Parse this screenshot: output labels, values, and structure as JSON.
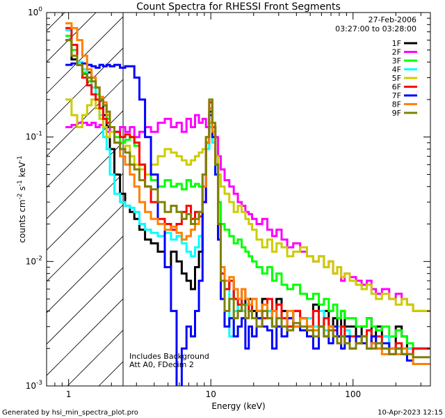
{
  "chart_data": {
    "type": "line",
    "title": "Count Spectra for RHESSI Front Segments",
    "xlabel": "Energy (keV)",
    "ylabel_base": "counts cm",
    "ylabel_exp1": "-2",
    "ylabel_mid": " s",
    "ylabel_exp2": "-1",
    "ylabel_tail": " keV",
    "ylabel_exp3": "-1",
    "x_scale": "log",
    "y_scale": "log",
    "xlim": [
      0.7,
      350
    ],
    "ylim": [
      0.001,
      1.0
    ],
    "x_ticks": [
      {
        "value": 1,
        "label": "1"
      },
      {
        "value": 10,
        "label": "10"
      },
      {
        "value": 100,
        "label": "100"
      }
    ],
    "y_ticks": [
      {
        "value": 1.0,
        "base": "10",
        "exp": "0"
      },
      {
        "value": 0.1,
        "base": "10",
        "exp": "-1"
      },
      {
        "value": 0.01,
        "base": "10",
        "exp": "-2"
      },
      {
        "value": 0.001,
        "base": "10",
        "exp": "-3"
      }
    ],
    "date": "27-Feb-2006",
    "time_range": "03:27:00 to 03:28:00",
    "annotation_line1": "Includes Background",
    "annotation_line2": "Att A0, FDecim 2",
    "hatched_below_keV": 3,
    "footer_left": "Generated by hsi_min_spectra_plot.pro",
    "footer_right": "10-Apr-2023 12:15",
    "energy": [
      1.0,
      1.1,
      1.2,
      1.3,
      1.4,
      1.5,
      1.6,
      1.7,
      1.8,
      1.9,
      2.0,
      2.2,
      2.4,
      2.6,
      2.8,
      3.0,
      3.3,
      3.6,
      4.0,
      4.5,
      5.0,
      5.5,
      6.0,
      6.5,
      7.0,
      7.5,
      8.0,
      8.5,
      9.0,
      9.5,
      10.0,
      10.5,
      11.0,
      11.5,
      12.0,
      13,
      14,
      15,
      16,
      17,
      18,
      19,
      20,
      22,
      24,
      26,
      28,
      30,
      33,
      36,
      40,
      45,
      50,
      55,
      60,
      65,
      70,
      75,
      80,
      85,
      90,
      100,
      110,
      120,
      130,
      140,
      150,
      170,
      190,
      210,
      230,
      250,
      280,
      300,
      330
    ],
    "series": [
      {
        "name": "1F",
        "color": "#000000",
        "values": [
          0.6,
          0.42,
          0.38,
          0.35,
          0.33,
          0.3,
          0.25,
          0.2,
          0.15,
          0.12,
          0.08,
          0.05,
          0.035,
          0.028,
          0.025,
          0.022,
          0.018,
          0.015,
          0.014,
          0.012,
          0.009,
          0.012,
          0.01,
          0.008,
          0.007,
          0.006,
          0.009,
          0.012,
          0.04,
          0.09,
          0.16,
          0.12,
          0.06,
          0.02,
          0.008,
          0.006,
          0.007,
          0.005,
          0.004,
          0.006,
          0.0045,
          0.005,
          0.004,
          0.0035,
          0.005,
          0.004,
          0.003,
          0.005,
          0.004,
          0.0035,
          0.004,
          0.0035,
          0.003,
          0.0045,
          0.003,
          0.004,
          0.003,
          0.0035,
          0.0025,
          0.004,
          0.003,
          0.003,
          0.0025,
          0.003,
          0.0035,
          0.0025,
          0.003,
          0.0025,
          0.002,
          0.003,
          0.0025,
          0.002,
          0.002,
          0.002,
          0.002
        ]
      },
      {
        "name": "2F",
        "color": "#ff00ff",
        "values": [
          0.12,
          0.125,
          0.13,
          0.13,
          0.125,
          0.13,
          0.12,
          0.125,
          0.12,
          0.11,
          0.12,
          0.11,
          0.12,
          0.11,
          0.12,
          0.1,
          0.11,
          0.12,
          0.11,
          0.13,
          0.14,
          0.12,
          0.13,
          0.11,
          0.14,
          0.12,
          0.15,
          0.13,
          0.14,
          0.12,
          0.13,
          0.12,
          0.1,
          0.07,
          0.055,
          0.045,
          0.04,
          0.035,
          0.03,
          0.028,
          0.025,
          0.024,
          0.022,
          0.02,
          0.022,
          0.018,
          0.016,
          0.018,
          0.015,
          0.013,
          0.014,
          0.012,
          0.011,
          0.01,
          0.011,
          0.009,
          0.01,
          0.008,
          0.009,
          0.007,
          0.008,
          0.0075,
          0.007,
          0.0065,
          0.007,
          0.006,
          0.0055,
          0.006,
          0.005,
          0.0055,
          0.005,
          0.0045,
          0.004,
          0.004,
          0.004
        ]
      },
      {
        "name": "3F",
        "color": "#00ff00",
        "values": [
          0.65,
          0.5,
          0.4,
          0.33,
          0.28,
          0.25,
          0.22,
          0.2,
          0.18,
          0.14,
          0.12,
          0.1,
          0.09,
          0.095,
          0.1,
          0.085,
          0.06,
          0.05,
          0.045,
          0.04,
          0.045,
          0.04,
          0.042,
          0.038,
          0.045,
          0.04,
          0.042,
          0.04,
          0.05,
          0.08,
          0.15,
          0.12,
          0.07,
          0.03,
          0.02,
          0.018,
          0.016,
          0.014,
          0.015,
          0.013,
          0.012,
          0.011,
          0.01,
          0.009,
          0.008,
          0.009,
          0.007,
          0.008,
          0.0065,
          0.006,
          0.0065,
          0.0055,
          0.005,
          0.0055,
          0.0045,
          0.005,
          0.004,
          0.0045,
          0.0035,
          0.004,
          0.0035,
          0.0035,
          0.003,
          0.003,
          0.0035,
          0.003,
          0.0028,
          0.003,
          0.0025,
          0.0028,
          0.0025,
          0.0022,
          0.002,
          0.002,
          0.002
        ]
      },
      {
        "name": "4F",
        "color": "#00ffff",
        "values": [
          0.72,
          0.45,
          0.4,
          0.35,
          0.3,
          0.25,
          0.2,
          0.15,
          0.1,
          0.08,
          0.05,
          0.035,
          0.03,
          0.028,
          0.027,
          0.025,
          0.02,
          0.018,
          0.017,
          0.016,
          0.017,
          0.015,
          0.016,
          0.014,
          0.012,
          0.011,
          0.013,
          0.016,
          0.04,
          0.08,
          0.12,
          0.09,
          0.05,
          0.02,
          0.008,
          0.006,
          0.0025,
          0.004,
          0.005,
          0.004,
          0.0045,
          0.004,
          0.005,
          0.004,
          0.0035,
          0.004,
          0.003,
          0.0045,
          0.0035,
          0.003,
          0.004,
          0.003,
          0.0035,
          0.003,
          0.004,
          0.0028,
          0.003,
          0.0025,
          0.003,
          0.0025,
          0.0028,
          0.0025,
          0.0022,
          0.0025,
          0.0028,
          0.002,
          0.0022,
          0.0025,
          0.002,
          0.002,
          0.0018,
          0.002,
          0.002,
          0.002,
          0.002
        ]
      },
      {
        "name": "5F",
        "color": "#cccc00",
        "values": [
          0.2,
          0.15,
          0.12,
          0.15,
          0.18,
          0.2,
          0.17,
          0.14,
          0.12,
          0.1,
          0.11,
          0.09,
          0.08,
          0.085,
          0.07,
          0.06,
          0.055,
          0.05,
          0.06,
          0.07,
          0.08,
          0.075,
          0.07,
          0.065,
          0.06,
          0.065,
          0.07,
          0.075,
          0.08,
          0.1,
          0.13,
          0.1,
          0.07,
          0.05,
          0.04,
          0.035,
          0.03,
          0.025,
          0.028,
          0.025,
          0.022,
          0.02,
          0.018,
          0.015,
          0.013,
          0.015,
          0.012,
          0.014,
          0.013,
          0.011,
          0.012,
          0.013,
          0.011,
          0.01,
          0.011,
          0.009,
          0.01,
          0.008,
          0.009,
          0.0075,
          0.008,
          0.007,
          0.0065,
          0.006,
          0.0065,
          0.0055,
          0.005,
          0.0055,
          0.005,
          0.0045,
          0.005,
          0.0045,
          0.004,
          0.004,
          0.004
        ]
      },
      {
        "name": "6F",
        "color": "#ff0000",
        "values": [
          0.75,
          0.55,
          0.38,
          0.3,
          0.26,
          0.22,
          0.2,
          0.17,
          0.14,
          0.13,
          0.12,
          0.11,
          0.1,
          0.105,
          0.1,
          0.09,
          0.06,
          0.04,
          0.03,
          0.022,
          0.02,
          0.018,
          0.02,
          0.025,
          0.028,
          0.022,
          0.025,
          0.023,
          0.03,
          0.09,
          0.19,
          0.12,
          0.06,
          0.015,
          0.008,
          0.006,
          0.007,
          0.005,
          0.0045,
          0.006,
          0.005,
          0.004,
          0.005,
          0.004,
          0.0035,
          0.005,
          0.004,
          0.0045,
          0.0035,
          0.003,
          0.004,
          0.0035,
          0.003,
          0.004,
          0.003,
          0.0035,
          0.003,
          0.0028,
          0.0025,
          0.003,
          0.0025,
          0.0025,
          0.0022,
          0.0025,
          0.0028,
          0.0022,
          0.0025,
          0.002,
          0.002,
          0.0022,
          0.002,
          0.0018,
          0.002,
          0.002,
          0.002
        ]
      },
      {
        "name": "7F",
        "color": "#0000ff",
        "values": [
          0.38,
          0.39,
          0.38,
          0.39,
          0.38,
          0.37,
          0.36,
          0.38,
          0.37,
          0.38,
          0.37,
          0.38,
          0.36,
          0.37,
          0.37,
          0.3,
          0.2,
          0.1,
          0.05,
          0.02,
          0.009,
          0.004,
          0.0008,
          0.002,
          0.003,
          0.0025,
          0.004,
          0.007,
          0.03,
          0.09,
          0.15,
          0.1,
          0.05,
          0.015,
          0.005,
          0.003,
          0.0035,
          0.0025,
          0.003,
          0.0035,
          0.002,
          0.003,
          0.0025,
          0.0035,
          0.003,
          0.0028,
          0.002,
          0.003,
          0.0025,
          0.0035,
          0.003,
          0.0028,
          0.0025,
          0.002,
          0.003,
          0.0025,
          0.0022,
          0.003,
          0.0025,
          0.002,
          0.0025,
          0.002,
          0.0025,
          0.0022,
          0.002,
          0.0025,
          0.002,
          0.0022,
          0.0018,
          0.002,
          0.0018,
          0.0016,
          0.0015,
          0.0015,
          0.0015
        ]
      },
      {
        "name": "8F",
        "color": "#ff8000",
        "values": [
          0.82,
          0.75,
          0.6,
          0.45,
          0.35,
          0.3,
          0.25,
          0.21,
          0.19,
          0.15,
          0.12,
          0.09,
          0.07,
          0.06,
          0.05,
          0.04,
          0.03,
          0.025,
          0.022,
          0.02,
          0.018,
          0.019,
          0.017,
          0.015,
          0.016,
          0.018,
          0.02,
          0.025,
          0.04,
          0.09,
          0.17,
          0.11,
          0.06,
          0.02,
          0.009,
          0.007,
          0.0075,
          0.006,
          0.005,
          0.006,
          0.005,
          0.0045,
          0.005,
          0.004,
          0.0045,
          0.0035,
          0.004,
          0.0035,
          0.003,
          0.004,
          0.003,
          0.0035,
          0.003,
          0.0028,
          0.003,
          0.0025,
          0.003,
          0.0025,
          0.0022,
          0.0025,
          0.0022,
          0.002,
          0.0022,
          0.0025,
          0.002,
          0.0022,
          0.002,
          0.0018,
          0.002,
          0.0018,
          0.002,
          0.0018,
          0.0015,
          0.0015,
          0.0015
        ]
      },
      {
        "name": "9F",
        "color": "#808000",
        "values": [
          0.6,
          0.45,
          0.38,
          0.32,
          0.3,
          0.28,
          0.25,
          0.2,
          0.18,
          0.16,
          0.12,
          0.09,
          0.08,
          0.075,
          0.06,
          0.055,
          0.045,
          0.04,
          0.038,
          0.03,
          0.025,
          0.028,
          0.025,
          0.022,
          0.024,
          0.02,
          0.022,
          0.025,
          0.05,
          0.1,
          0.2,
          0.13,
          0.06,
          0.02,
          0.007,
          0.004,
          0.005,
          0.0035,
          0.004,
          0.0045,
          0.0035,
          0.004,
          0.0035,
          0.003,
          0.004,
          0.0035,
          0.003,
          0.0035,
          0.003,
          0.0028,
          0.0032,
          0.003,
          0.0028,
          0.0025,
          0.003,
          0.0025,
          0.0028,
          0.0025,
          0.0022,
          0.0025,
          0.0022,
          0.002,
          0.0022,
          0.0025,
          0.002,
          0.002,
          0.0022,
          0.002,
          0.0018,
          0.002,
          0.0018,
          0.0018,
          0.0017,
          0.0017,
          0.0017
        ]
      }
    ]
  }
}
